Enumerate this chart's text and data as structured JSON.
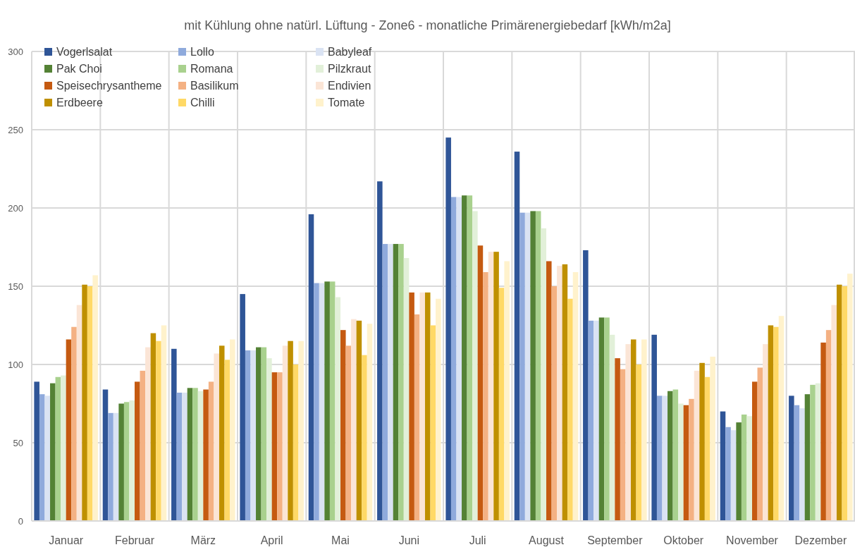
{
  "chart_data": {
    "type": "bar",
    "title": "mit Kühlung ohne natürl. Lüftung - Zone6 - monatliche Primärenergiebedarf [kWh/m2a]",
    "categories": [
      "Januar",
      "Februar",
      "März",
      "April",
      "Mai",
      "Juni",
      "Juli",
      "August",
      "September",
      "Oktober",
      "November",
      "Dezember"
    ],
    "series": [
      {
        "name": "Vogerlsalat",
        "color": "#2f5597",
        "values": [
          89,
          84,
          110,
          145,
          196,
          217,
          245,
          236,
          173,
          119,
          70,
          80
        ]
      },
      {
        "name": "Lollo",
        "color": "#8faadc",
        "values": [
          81,
          69,
          82,
          109,
          152,
          177,
          207,
          197,
          128,
          80,
          60,
          74
        ]
      },
      {
        "name": "Babyleaf",
        "color": "#dae3f3",
        "values": [
          80,
          69,
          82,
          109,
          152,
          177,
          207,
          197,
          128,
          80,
          58,
          72
        ]
      },
      {
        "name": "Pak Choi",
        "color": "#548235",
        "values": [
          88,
          75,
          85,
          111,
          153,
          177,
          208,
          198,
          130,
          83,
          63,
          81
        ]
      },
      {
        "name": "Romana",
        "color": "#a9d18e",
        "values": [
          92,
          76,
          85,
          111,
          153,
          177,
          208,
          198,
          130,
          84,
          68,
          87
        ]
      },
      {
        "name": "Pilzkraut",
        "color": "#e2f0d9",
        "values": [
          93,
          77,
          83,
          104,
          143,
          168,
          198,
          187,
          119,
          75,
          67,
          88
        ]
      },
      {
        "name": "Speisechrysantheme",
        "color": "#c55a11",
        "values": [
          116,
          89,
          84,
          95,
          122,
          146,
          176,
          166,
          104,
          74,
          89,
          114
        ]
      },
      {
        "name": "Basilikum",
        "color": "#f4b183",
        "values": [
          124,
          96,
          89,
          95,
          112,
          132,
          159,
          150,
          97,
          78,
          98,
          122
        ]
      },
      {
        "name": "Endivien",
        "color": "#fbe5d6",
        "values": [
          138,
          111,
          107,
          112,
          129,
          146,
          172,
          163,
          113,
          96,
          113,
          138
        ]
      },
      {
        "name": "Erdbeere",
        "color": "#bf9000",
        "values": [
          151,
          120,
          112,
          115,
          128,
          146,
          172,
          164,
          116,
          101,
          125,
          151
        ]
      },
      {
        "name": "Chilli",
        "color": "#ffd966",
        "values": [
          150,
          115,
          103,
          100,
          106,
          125,
          149,
          142,
          100,
          92,
          124,
          150
        ]
      },
      {
        "name": "Tomate",
        "color": "#fff2cc",
        "values": [
          157,
          125,
          116,
          115,
          126,
          142,
          166,
          159,
          116,
          105,
          131,
          158
        ]
      }
    ],
    "ylim": [
      0,
      300
    ],
    "yticks": [
      0,
      50,
      100,
      150,
      200,
      250,
      300
    ],
    "grid": true,
    "legend": "top left"
  }
}
